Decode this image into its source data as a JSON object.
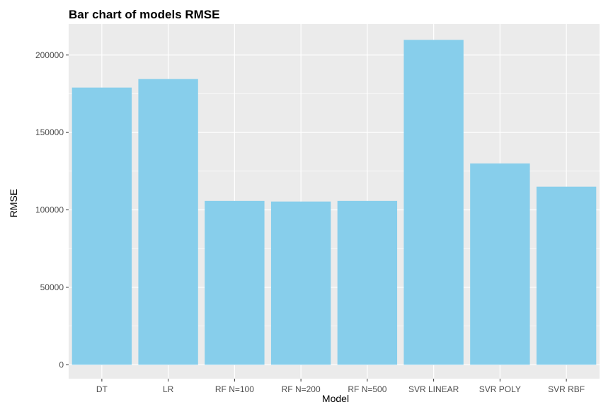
{
  "chart_data": {
    "type": "bar",
    "title": "Bar chart of models RMSE",
    "xlabel": "Model",
    "ylabel": "RMSE",
    "categories": [
      "DT",
      "LR",
      "RF N=100",
      "RF N=200",
      "RF N=500",
      "SVR LINEAR",
      "SVR POLY",
      "SVR RBF"
    ],
    "values": [
      179000,
      184500,
      105800,
      105400,
      105800,
      209800,
      130000,
      115000
    ],
    "ylim": [
      -9000,
      220000
    ],
    "yticks": [
      0,
      50000,
      100000,
      150000,
      200000
    ],
    "ytick_labels": [
      "0",
      "50000",
      "100000",
      "150000",
      "200000"
    ],
    "grid": true,
    "legend": "none",
    "colors": {
      "bar": "#87ceeb",
      "panel": "#ebebeb",
      "grid": "#ffffff"
    }
  }
}
